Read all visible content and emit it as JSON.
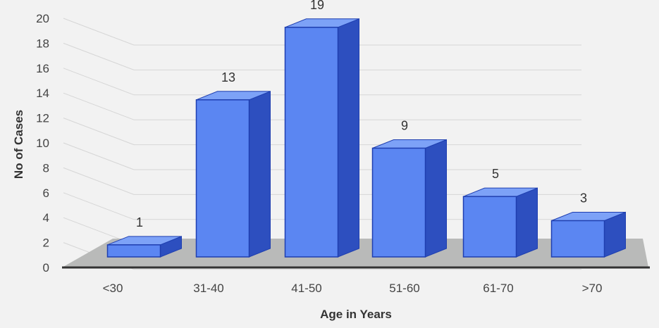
{
  "chart_data": {
    "type": "bar",
    "style": "3d-column",
    "title": "",
    "xlabel": "Age in Years",
    "ylabel": "No of Cases",
    "categories": [
      "<30",
      "31-40",
      "41-50",
      "51-60",
      "61-70",
      ">70"
    ],
    "values": [
      1,
      13,
      19,
      9,
      5,
      3
    ],
    "ylim": [
      0,
      20
    ],
    "ytick_step": 2,
    "grid": true,
    "legend": "none",
    "data_labels": true
  },
  "colors": {
    "background": "#f2f2f2",
    "bar_front": "#5b86f2",
    "bar_top": "#7da2f7",
    "bar_side": "#2d4fbf",
    "bar_edge": "#1f3fb0",
    "floor": "#b9bab9",
    "gridline": "#d6d6d6",
    "axis": "#333333"
  }
}
